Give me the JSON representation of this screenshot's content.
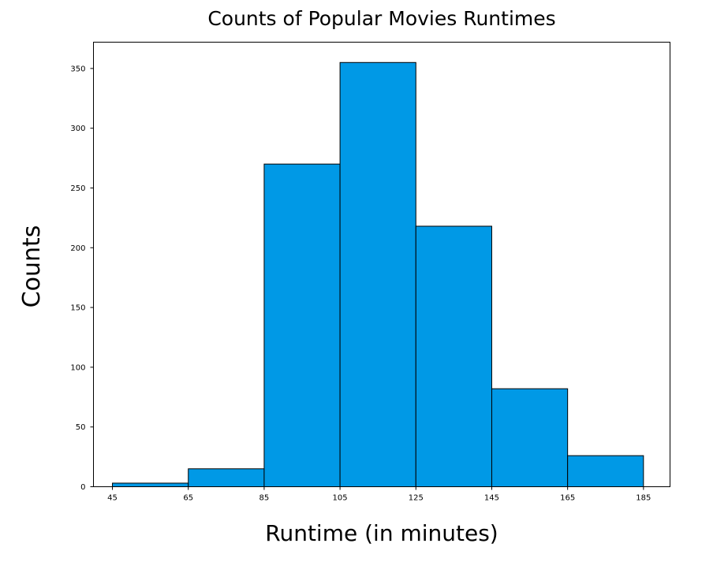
{
  "chart_data": {
    "type": "bar",
    "subtype": "histogram",
    "title": "Counts of Popular Movies Runtimes",
    "xlabel": "Runtime (in minutes)",
    "ylabel": "Counts",
    "bin_edges": [
      45,
      65,
      85,
      105,
      125,
      145,
      165,
      185
    ],
    "bins": [
      {
        "start": 45,
        "end": 65,
        "count": 3
      },
      {
        "start": 65,
        "end": 85,
        "count": 15
      },
      {
        "start": 85,
        "end": 105,
        "count": 270
      },
      {
        "start": 105,
        "end": 125,
        "count": 355
      },
      {
        "start": 125,
        "end": 145,
        "count": 218
      },
      {
        "start": 145,
        "end": 165,
        "count": 82
      },
      {
        "start": 165,
        "end": 185,
        "count": 26
      }
    ],
    "x_ticks": [
      "45",
      "65",
      "85",
      "105",
      "125",
      "145",
      "165",
      "185"
    ],
    "y_ticks": [
      0,
      50,
      100,
      150,
      200,
      250,
      300,
      350
    ],
    "xlim": [
      40,
      192
    ],
    "ylim": [
      0,
      372
    ],
    "bar_color": "#0099e6",
    "edge_color": "#000000",
    "grid": false
  }
}
